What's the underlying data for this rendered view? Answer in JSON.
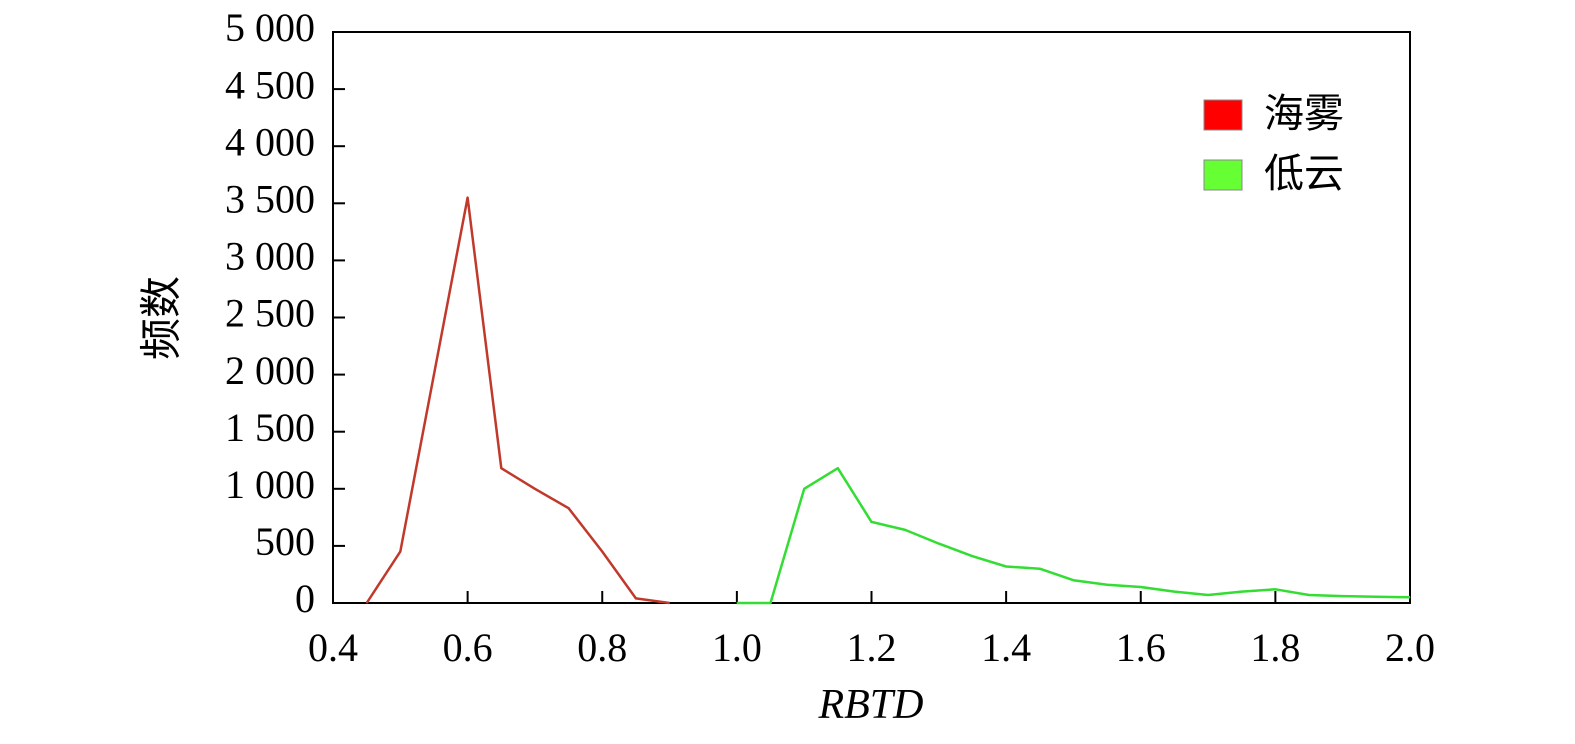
{
  "chart_data": {
    "type": "line",
    "xlabel": "RBTD",
    "ylabel": "频数",
    "xlim": [
      0.4,
      2.0
    ],
    "ylim": [
      0,
      5000
    ],
    "x_ticks": [
      {
        "value": 0.4,
        "label": "0.4"
      },
      {
        "value": 0.6,
        "label": "0.6"
      },
      {
        "value": 0.8,
        "label": "0.8"
      },
      {
        "value": 1.0,
        "label": "1.0"
      },
      {
        "value": 1.2,
        "label": "1.2"
      },
      {
        "value": 1.4,
        "label": "1.4"
      },
      {
        "value": 1.6,
        "label": "1.6"
      },
      {
        "value": 1.8,
        "label": "1.8"
      },
      {
        "value": 2.0,
        "label": "2.0"
      }
    ],
    "y_ticks": [
      {
        "value": 0,
        "label": "0"
      },
      {
        "value": 500,
        "label": "500"
      },
      {
        "value": 1000,
        "label": "1 000"
      },
      {
        "value": 1500,
        "label": "1 500"
      },
      {
        "value": 2000,
        "label": "2 000"
      },
      {
        "value": 2500,
        "label": "2 500"
      },
      {
        "value": 3000,
        "label": "3 000"
      },
      {
        "value": 3500,
        "label": "3 500"
      },
      {
        "value": 4000,
        "label": "4 000"
      },
      {
        "value": 4500,
        "label": "4 500"
      },
      {
        "value": 5000,
        "label": "5 000"
      }
    ],
    "legend_position": "top-right",
    "grid": false,
    "series": [
      {
        "name": "海雾",
        "color": "#c0392b",
        "legend_color": "#ff0000",
        "x": [
          0.45,
          0.5,
          0.6,
          0.65,
          0.7,
          0.75,
          0.8,
          0.85,
          0.9
        ],
        "y": [
          0,
          450,
          3550,
          1180,
          1000,
          830,
          450,
          40,
          0
        ]
      },
      {
        "name": "低云",
        "color": "#33dd33",
        "legend_color": "#66ff33",
        "x": [
          1.0,
          1.05,
          1.1,
          1.15,
          1.2,
          1.25,
          1.3,
          1.35,
          1.4,
          1.45,
          1.5,
          1.55,
          1.6,
          1.65,
          1.7,
          1.75,
          1.8,
          1.85,
          1.9,
          1.95,
          2.0
        ],
        "y": [
          0,
          0,
          1000,
          1180,
          710,
          640,
          520,
          410,
          320,
          300,
          200,
          160,
          140,
          100,
          70,
          100,
          120,
          70,
          60,
          55,
          50
        ]
      }
    ]
  }
}
